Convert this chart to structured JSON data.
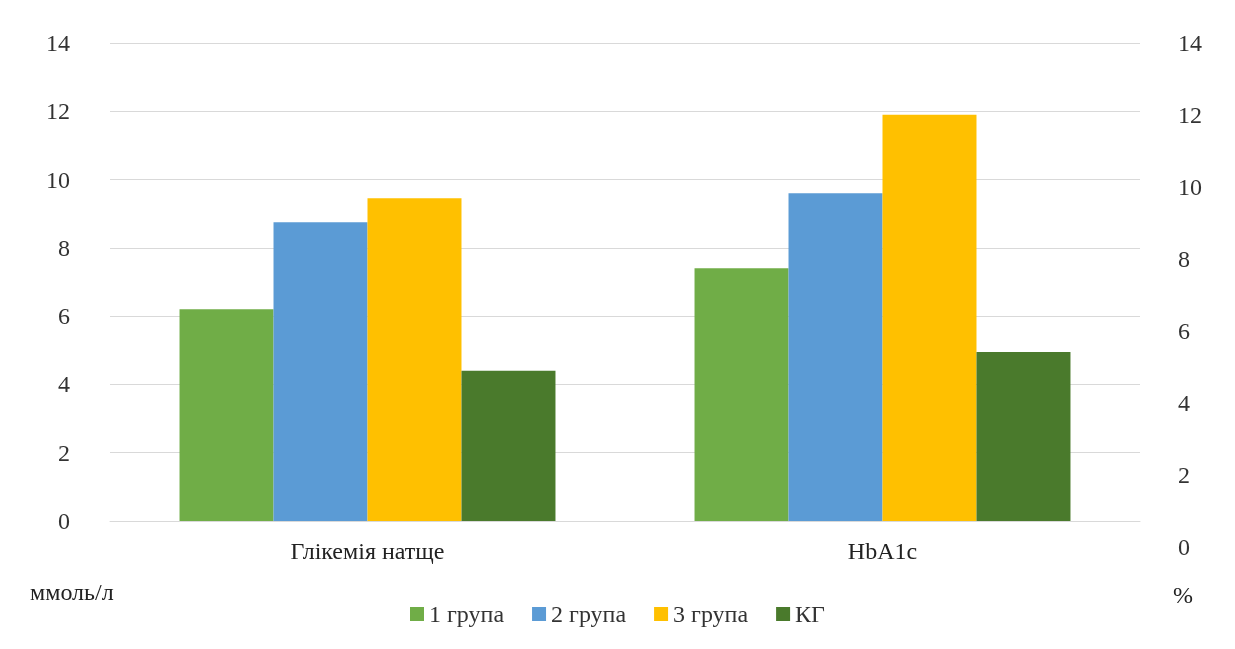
{
  "chart_data": {
    "type": "bar",
    "categories": [
      "Глікемія натще",
      "HbA1c"
    ],
    "series": [
      {
        "name": "1 група",
        "color": "#70ad47",
        "values": [
          6.2,
          7.4
        ]
      },
      {
        "name": "2 група",
        "color": "#5b9bd5",
        "values": [
          8.75,
          9.6
        ]
      },
      {
        "name": "3 група",
        "color": "#ffc000",
        "values": [
          9.45,
          11.9
        ]
      },
      {
        "name": "КГ",
        "color": "#4a7a2c",
        "values": [
          4.4,
          4.95
        ]
      }
    ],
    "ylabel": "ммоль/л",
    "y2label": "%",
    "ylim": [
      0,
      14
    ],
    "yticks": [
      0,
      2,
      4,
      6,
      8,
      10,
      12,
      14
    ],
    "y2lim": [
      0,
      14
    ],
    "y2ticks": [
      0,
      2,
      4,
      6,
      8,
      10,
      12,
      14
    ],
    "grid": "y",
    "legend": "bottom"
  }
}
